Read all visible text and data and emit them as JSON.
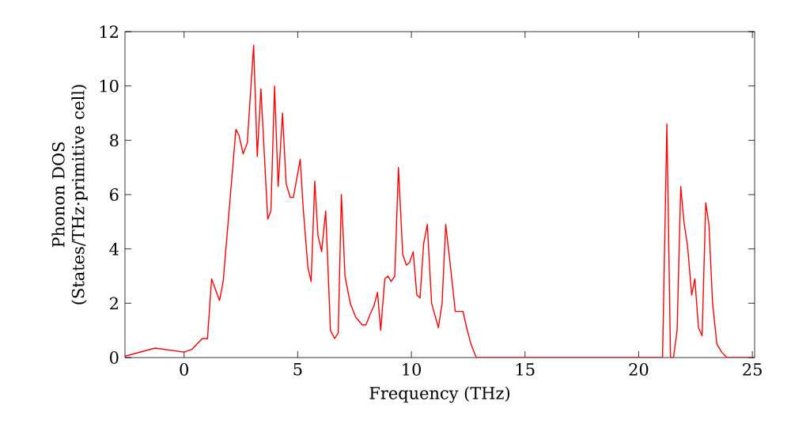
{
  "chart_data": {
    "type": "line",
    "xlabel": "Frequency (THz)",
    "ylabel": "Phonon DOS\n(States/THz·primitive cell)",
    "xlim": [
      -2.6,
      25.1
    ],
    "ylim": [
      0,
      12
    ],
    "xticks": [
      0,
      5,
      10,
      15,
      20,
      25
    ],
    "yticks": [
      0,
      2,
      4,
      6,
      8,
      10,
      12
    ],
    "grid": false,
    "line_style": "solid",
    "marker": "none",
    "series": [
      {
        "color": "#ff0000",
        "x": [
          -2.6,
          -1.27,
          0,
          0.34,
          0.8,
          1.03,
          1.21,
          1.56,
          1.72,
          2.28,
          2.41,
          2.6,
          2.78,
          3.06,
          3.22,
          3.38,
          3.68,
          3.82,
          3.98,
          4.14,
          4.33,
          4.49,
          4.67,
          4.81,
          5.11,
          5.24,
          5.45,
          5.59,
          5.75,
          5.89,
          6.05,
          6.23,
          6.44,
          6.62,
          6.78,
          6.92,
          7.08,
          7.31,
          7.54,
          7.84,
          8.0,
          8.19,
          8.35,
          8.51,
          8.65,
          8.83,
          8.97,
          9.11,
          9.27,
          9.43,
          9.62,
          9.78,
          9.92,
          10.08,
          10.24,
          10.38,
          10.54,
          10.7,
          10.89,
          11.19,
          11.35,
          11.51,
          11.7,
          11.93,
          12.27,
          12.43,
          12.62,
          12.85,
          21.05,
          21.24,
          21.4,
          21.53,
          21.69,
          21.85,
          21.99,
          22.15,
          22.33,
          22.47,
          22.63,
          22.79,
          22.95,
          23.09,
          23.25,
          23.44,
          23.65,
          23.88,
          25.1
        ],
        "values": [
          0.05,
          0.35,
          0.2,
          0.3,
          0.7,
          0.7,
          2.9,
          2.1,
          2.8,
          8.4,
          8.2,
          7.5,
          7.9,
          11.5,
          7.4,
          9.9,
          5.1,
          5.4,
          10.0,
          6.3,
          9.0,
          6.4,
          5.9,
          5.9,
          7.3,
          5.5,
          3.3,
          2.8,
          6.5,
          4.5,
          3.9,
          5.4,
          1.0,
          0.7,
          0.9,
          6.0,
          3.0,
          2.0,
          1.5,
          1.2,
          1.2,
          1.6,
          1.9,
          2.4,
          1.0,
          2.9,
          3.0,
          2.8,
          3.0,
          7.0,
          3.8,
          3.4,
          3.5,
          3.9,
          2.3,
          2.2,
          4.2,
          4.9,
          2.0,
          1.1,
          2.0,
          4.9,
          3.5,
          1.7,
          1.7,
          1.1,
          0.5,
          0,
          0,
          8.6,
          0,
          0,
          1.0,
          6.3,
          5.0,
          4.1,
          2.3,
          2.9,
          1.1,
          0.8,
          5.7,
          4.9,
          2.0,
          0.5,
          0.2,
          0,
          0
        ]
      }
    ]
  }
}
